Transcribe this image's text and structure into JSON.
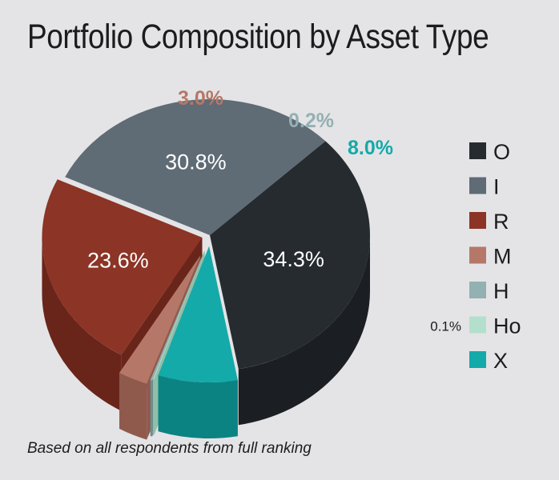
{
  "chart_data": {
    "type": "pie",
    "title": "Portfolio Composition by Asset Type",
    "note": "Based on all respondents from full ranking",
    "slices": [
      {
        "name": "O",
        "value": 34.3,
        "label": "34.3%",
        "color": "#262b30",
        "side": "#1b1f23"
      },
      {
        "name": "I",
        "value": 30.8,
        "label": "30.8%",
        "color": "#5f6b75",
        "side": "#3e4850"
      },
      {
        "name": "R",
        "value": 23.6,
        "label": "23.6%",
        "color": "#8c3426",
        "side": "#6a251a"
      },
      {
        "name": "M",
        "value": 3.0,
        "label": "3.0%",
        "color": "#b57868",
        "side": "#8f5a4c",
        "label_color": "#b57868"
      },
      {
        "name": "H",
        "value": 0.2,
        "label": "0.2%",
        "color": "#93b0b2",
        "side": "#6f8c8e",
        "label_color": "#93b0b2"
      },
      {
        "name": "Ho",
        "value": 0.1,
        "label": "0.1%",
        "color": "#b3e0cc",
        "side": "#8fbfa9"
      },
      {
        "name": "X",
        "value": 8.0,
        "label": "8.0%",
        "color": "#14aaa9",
        "side": "#0c8383",
        "label_color": "#14aaa9"
      }
    ],
    "legend": {
      "position": "right"
    }
  }
}
